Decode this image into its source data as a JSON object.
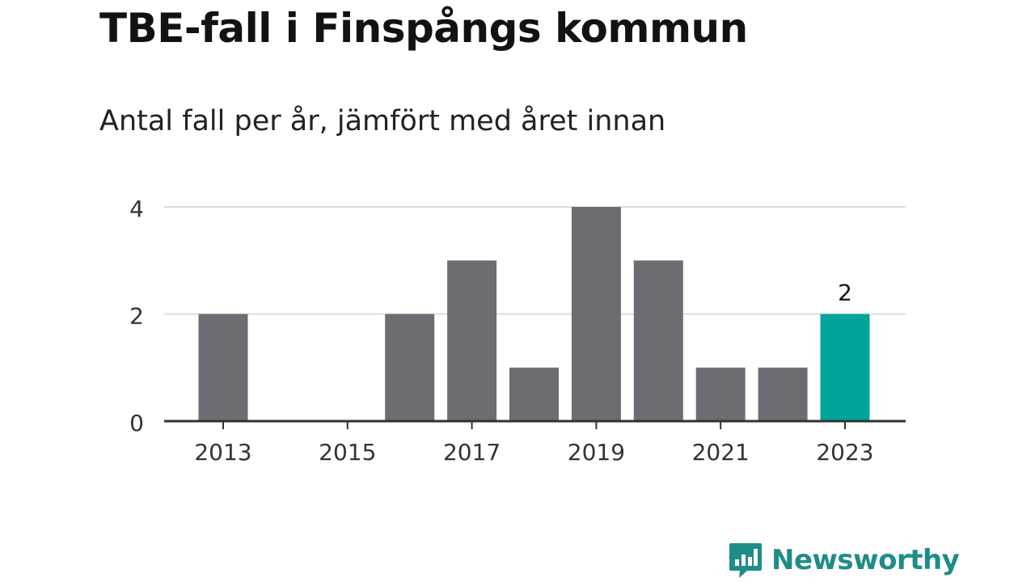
{
  "title": "TBE-fall i Finspångs kommun",
  "subtitle": "Antal fall per år, jämfört med året innan",
  "brand": "Newsworthy",
  "colors": {
    "bar": "#6d6c72",
    "highlight": "#00a499",
    "grid": "#dddddd",
    "axis": "#333333",
    "brand": "#1f8c87"
  },
  "chart_data": {
    "type": "bar",
    "categories": [
      "2013",
      "2014",
      "2015",
      "2016",
      "2017",
      "2018",
      "2019",
      "2020",
      "2021",
      "2022",
      "2023"
    ],
    "values": [
      2,
      0,
      0,
      2,
      3,
      1,
      4,
      3,
      1,
      1,
      2
    ],
    "highlight_index": 10,
    "highlight_label": "2",
    "x_tick_labels": [
      "2013",
      "2015",
      "2017",
      "2019",
      "2021",
      "2023"
    ],
    "y_ticks": [
      0,
      2,
      4
    ],
    "ylim": [
      0,
      4
    ],
    "grid": true,
    "xlabel": "",
    "ylabel": ""
  }
}
